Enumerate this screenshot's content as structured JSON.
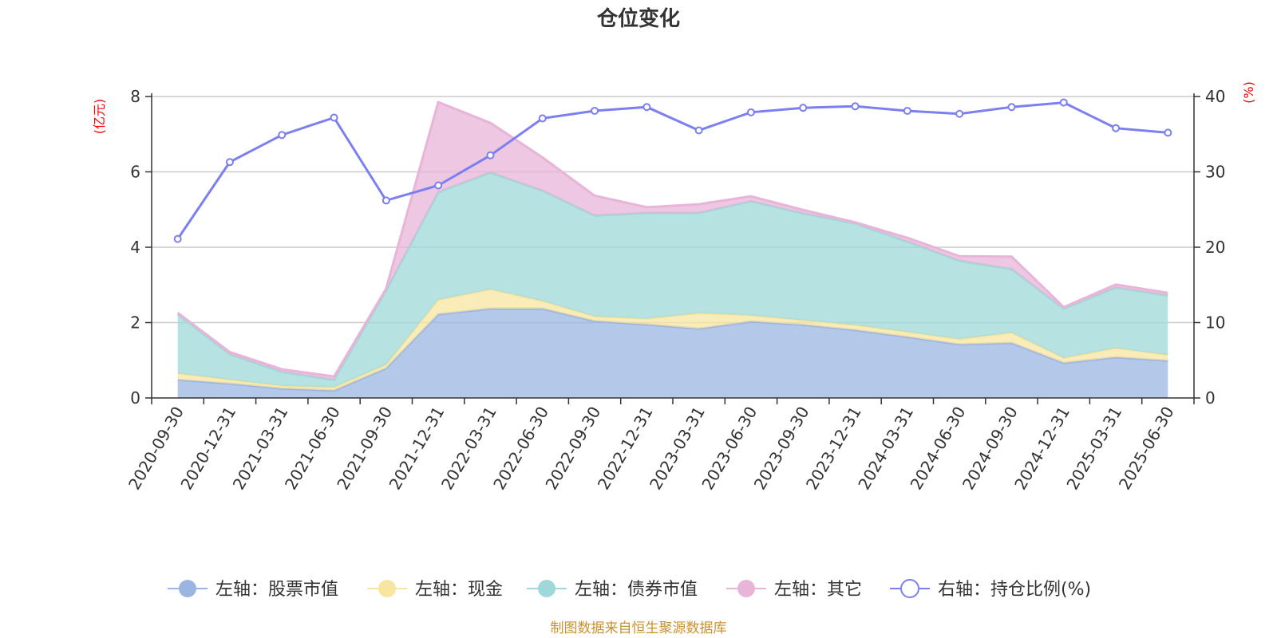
{
  "chart_data": {
    "type": "area",
    "title": "仓位变化",
    "left_axis_unit": "(亿元)",
    "right_axis_unit": "(%)",
    "categories": [
      "2020-09-30",
      "2020-12-31",
      "2021-03-31",
      "2021-06-30",
      "2021-09-30",
      "2021-12-31",
      "2022-03-31",
      "2022-06-30",
      "2022-09-30",
      "2022-12-31",
      "2023-03-31",
      "2023-06-30",
      "2023-09-30",
      "2023-12-31",
      "2024-03-31",
      "2024-06-30",
      "2024-09-30",
      "2024-12-31",
      "2025-03-31",
      "2025-06-30"
    ],
    "left_ylim": [
      0,
      8
    ],
    "left_yticks": [
      0,
      2,
      4,
      6,
      8
    ],
    "right_ylim": [
      0,
      40
    ],
    "right_yticks": [
      0,
      10,
      20,
      30,
      40
    ],
    "grid": true,
    "legend_position": "bottom",
    "series": [
      {
        "name": "左轴：股票市值",
        "axis": "left",
        "stack": true,
        "color": "#9bb5e3",
        "values": [
          0.48,
          0.38,
          0.25,
          0.2,
          0.79,
          2.22,
          2.37,
          2.37,
          2.04,
          1.95,
          1.84,
          2.03,
          1.94,
          1.8,
          1.62,
          1.42,
          1.46,
          0.93,
          1.08,
          0.99
        ]
      },
      {
        "name": "左轴：现金",
        "axis": "left",
        "stack": true,
        "color": "#f8e6a0",
        "values": [
          0.17,
          0.1,
          0.07,
          0.08,
          0.09,
          0.38,
          0.51,
          0.2,
          0.12,
          0.15,
          0.41,
          0.16,
          0.12,
          0.13,
          0.13,
          0.14,
          0.27,
          0.13,
          0.24,
          0.15
        ]
      },
      {
        "name": "左轴：债券市值",
        "axis": "left",
        "stack": true,
        "color": "#9fd8d8",
        "values": [
          1.57,
          0.68,
          0.37,
          0.2,
          1.97,
          2.86,
          3.1,
          2.93,
          2.68,
          2.81,
          2.66,
          3.03,
          2.84,
          2.7,
          2.4,
          2.08,
          1.69,
          1.31,
          1.61,
          1.58
        ]
      },
      {
        "name": "左轴：其它",
        "axis": "left",
        "stack": true,
        "color": "#e8b4d8",
        "values": [
          0.04,
          0.06,
          0.07,
          0.09,
          0.05,
          2.39,
          1.32,
          0.88,
          0.53,
          0.15,
          0.23,
          0.13,
          0.09,
          0.03,
          0.1,
          0.12,
          0.33,
          0.04,
          0.08,
          0.07
        ]
      },
      {
        "name": "右轴：持仓比例(%)",
        "axis": "right",
        "stack": false,
        "color": "#7b7ff0",
        "values": [
          21.1,
          31.3,
          34.9,
          37.2,
          26.2,
          28.2,
          32.2,
          37.1,
          38.1,
          38.6,
          35.5,
          37.9,
          38.5,
          38.7,
          38.1,
          37.7,
          38.6,
          39.2,
          35.8,
          35.2
        ]
      }
    ]
  },
  "footer": {
    "source_label": "制图数据来自恒生聚源数据库"
  }
}
